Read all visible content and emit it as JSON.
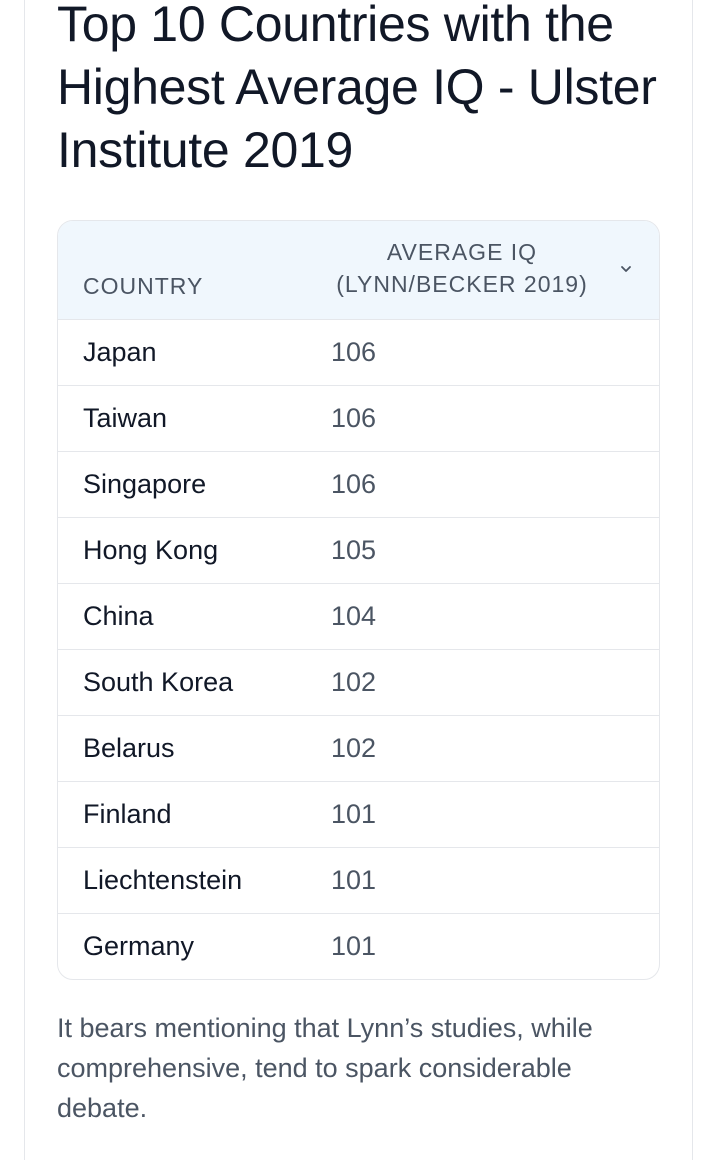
{
  "title": "Top 10 Countries with the Highest Average IQ - Ulster Institute 2019",
  "table": {
    "headers": {
      "country": "COUNTRY",
      "iq_line1": "AVERAGE IQ",
      "iq_line2": "(LYNN/BECKER 2019)"
    },
    "rows": [
      {
        "country": "Japan",
        "iq": "106"
      },
      {
        "country": "Taiwan",
        "iq": "106"
      },
      {
        "country": "Singapore",
        "iq": "106"
      },
      {
        "country": "Hong Kong",
        "iq": "105"
      },
      {
        "country": "China",
        "iq": "104"
      },
      {
        "country": "South Korea",
        "iq": "102"
      },
      {
        "country": "Belarus",
        "iq": "102"
      },
      {
        "country": "Finland",
        "iq": "101"
      },
      {
        "country": "Liechtenstein",
        "iq": "101"
      },
      {
        "country": "Germany",
        "iq": "101"
      }
    ]
  },
  "note": "It bears mentioning that Lynn’s studies, while comprehensive, tend to spark considerable debate.",
  "icons": {
    "sort": "chevron-down-icon"
  },
  "colors": {
    "header_bg": "#f0f7fd",
    "border": "#e5e7eb",
    "title": "#111827",
    "muted": "#4b5563"
  }
}
